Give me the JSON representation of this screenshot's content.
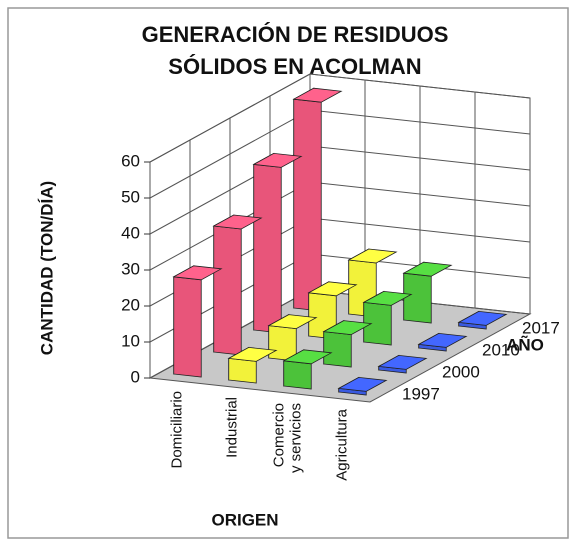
{
  "chart_data": {
    "type": "bar3d",
    "title": [
      "GENERACIÓN DE RESIDUOS",
      "SÓLIDOS EN ACOLMAN"
    ],
    "x_label": "ORIGEN",
    "y_label": "CANTIDAD (TON/DÍA)",
    "depth_label": "AÑO",
    "categories": [
      "Domiciliario",
      "Industrial",
      "Comercio y servicios",
      "Agricultura"
    ],
    "colors": [
      "#e8557a",
      "#f2f23a",
      "#4cc23a",
      "#3a5ae0"
    ],
    "series": [
      {
        "name": "1997",
        "values": [
          27,
          6,
          7,
          1
        ]
      },
      {
        "name": "2000",
        "values": [
          35,
          9,
          9,
          1
        ]
      },
      {
        "name": "2010",
        "values": [
          46,
          12,
          11,
          1
        ]
      },
      {
        "name": "2017",
        "values": [
          58,
          15,
          13,
          1
        ]
      }
    ],
    "ylim": [
      0,
      60
    ],
    "yticks": [
      0,
      10,
      20,
      30,
      40,
      50,
      60
    ],
    "grid": true
  }
}
